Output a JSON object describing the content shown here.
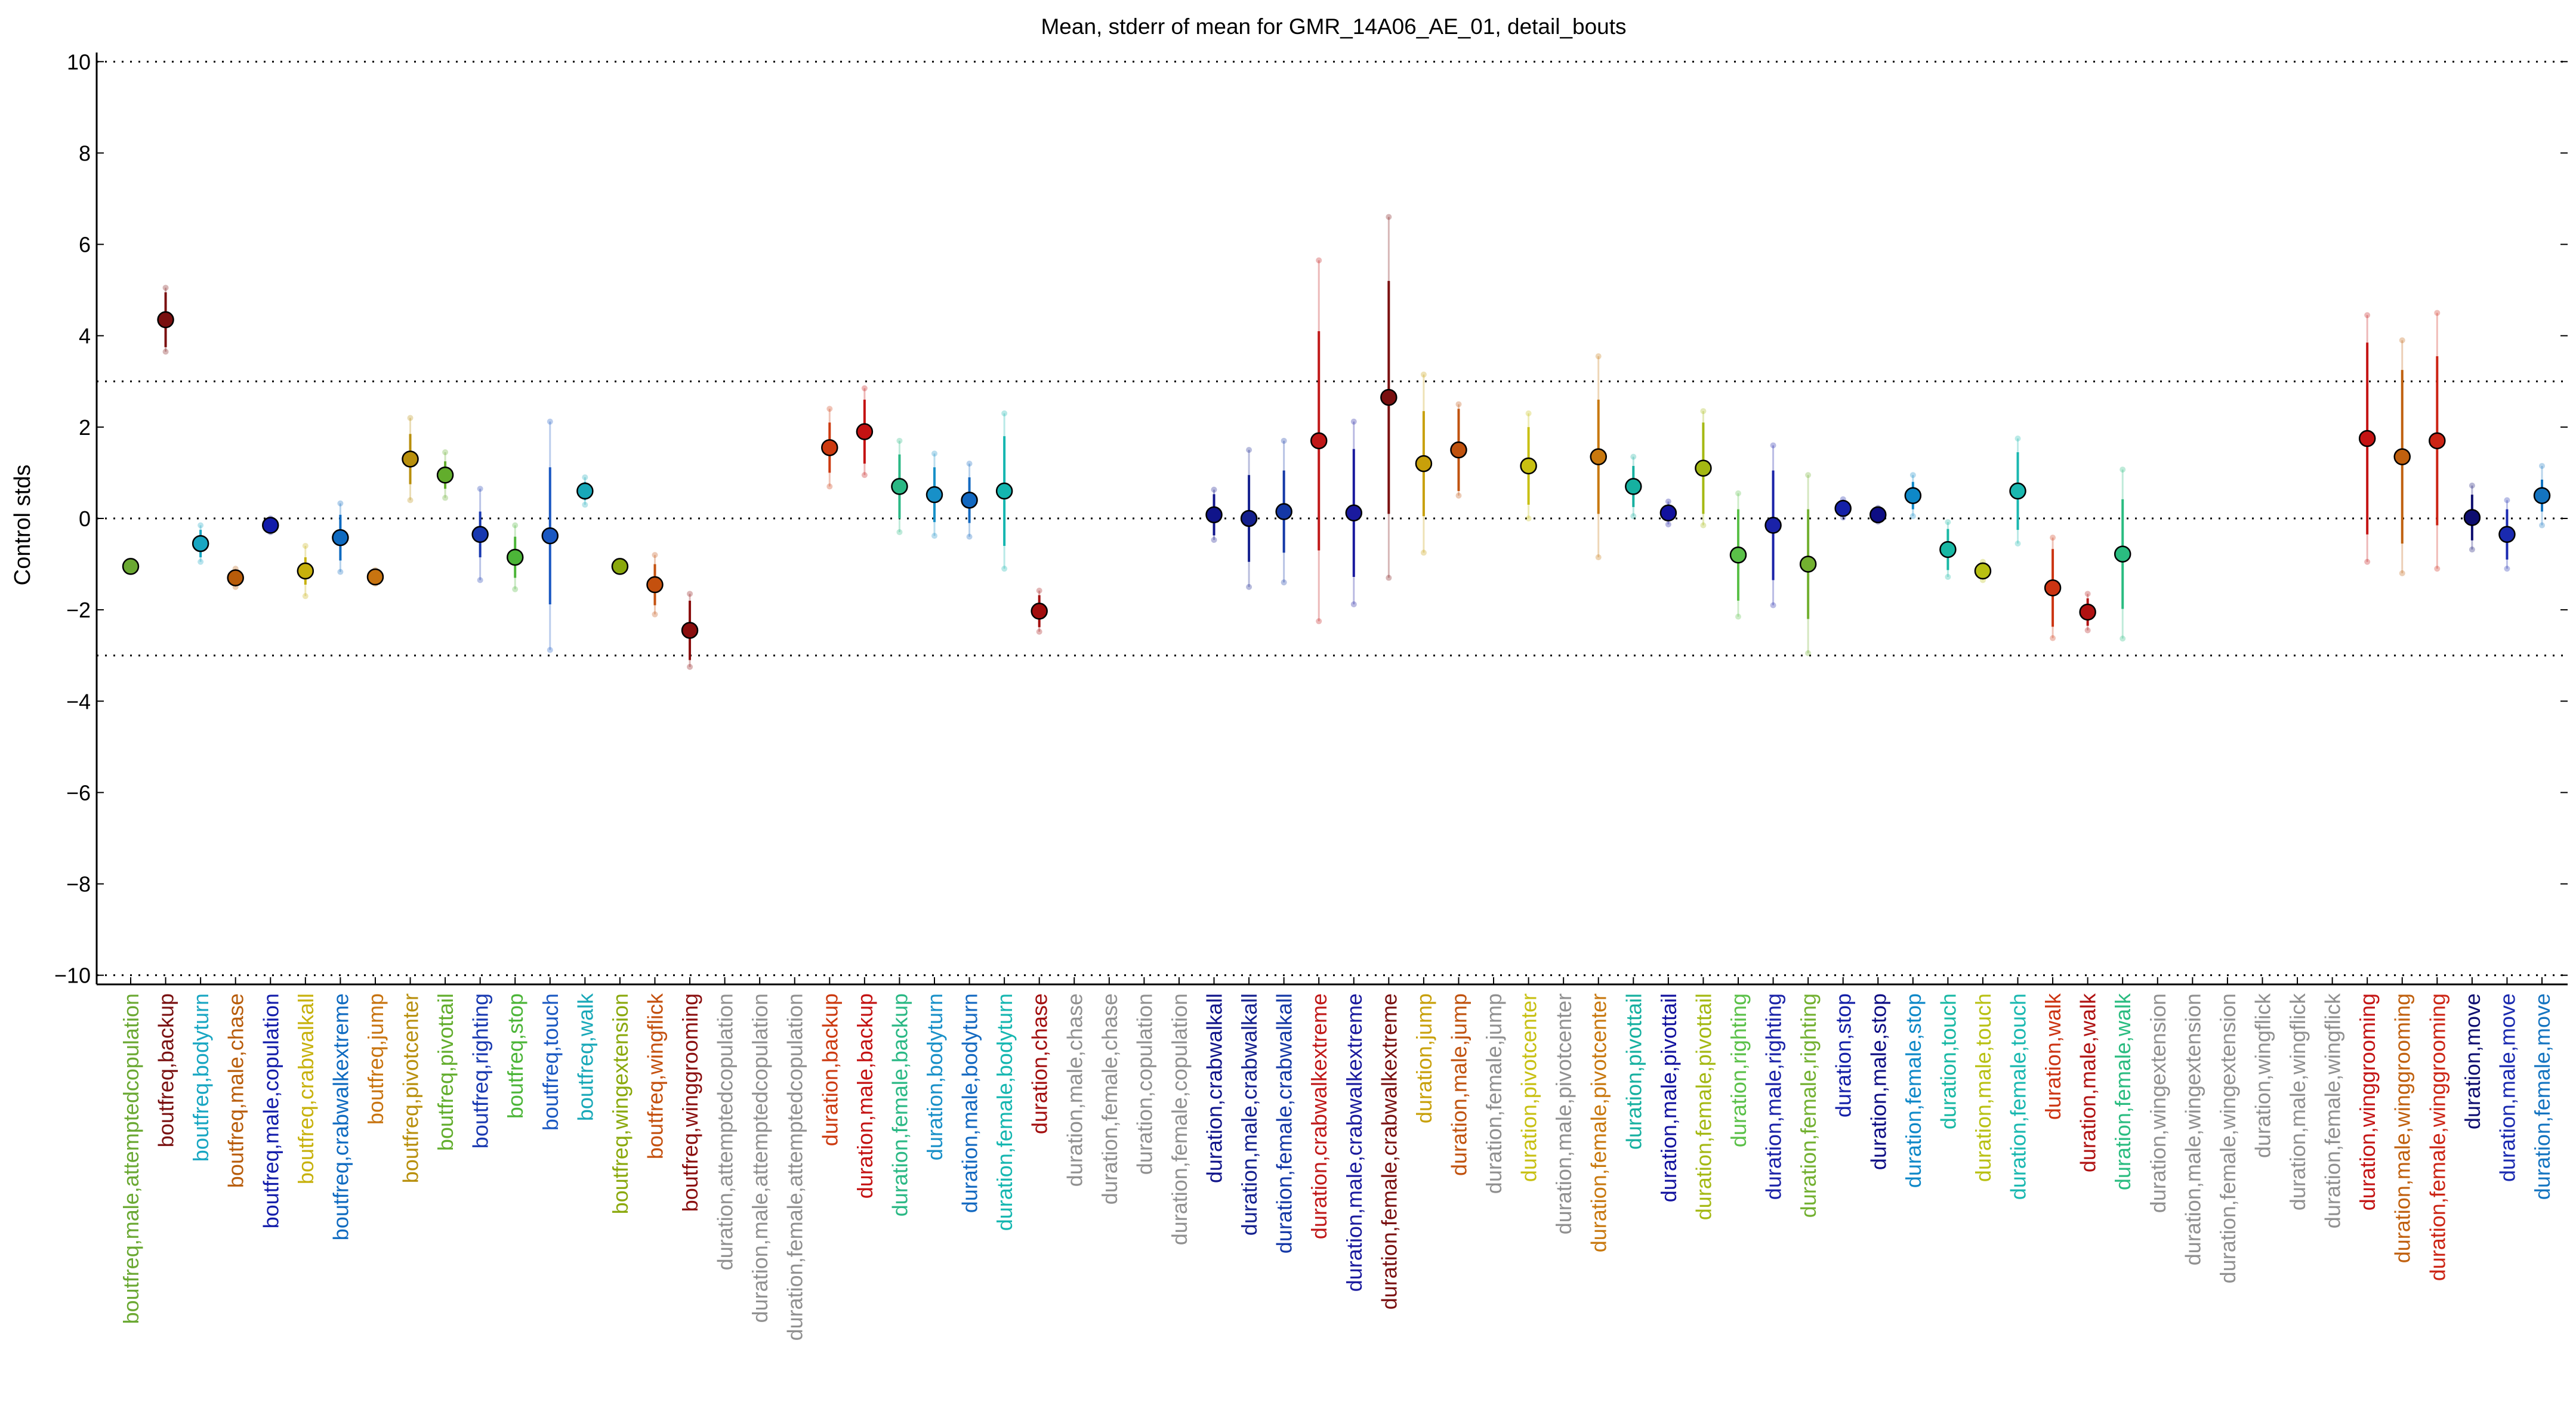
{
  "chart_data": {
    "type": "scatter",
    "title": "Mean, stderr of mean for GMR_14A06_AE_01, detail_bouts",
    "xlabel": "",
    "ylabel": "Control stds",
    "ylim": [
      -10.2,
      10.2
    ],
    "yticks": [
      -10,
      -8,
      -6,
      -4,
      -2,
      0,
      2,
      4,
      6,
      8,
      10
    ],
    "hlines": [
      10,
      3,
      0,
      -3,
      -10
    ],
    "grid": false,
    "legend": "none",
    "points": [
      {
        "label": "boutfreq,male,attemptedcopulation",
        "color": "#6aa832",
        "y": -1.05,
        "err": 0,
        "ext": 0
      },
      {
        "label": "boutfreq,backup",
        "color": "#7a1010",
        "y": 4.35,
        "err": 0.6,
        "ext": 0.7
      },
      {
        "label": "boutfreq,bodyturn",
        "color": "#18a6c2",
        "y": -0.55,
        "err": 0.3,
        "ext": 0.4
      },
      {
        "label": "boutfreq,male,chase",
        "color": "#b85c0a",
        "y": -1.3,
        "err": 0.12,
        "ext": 0.2
      },
      {
        "label": "boutfreq,male,copulation",
        "color": "#121caa",
        "y": -0.15,
        "err": 0.1,
        "ext": 0.15
      },
      {
        "label": "boutfreq,crabwalkall",
        "color": "#c7b10c",
        "y": -1.15,
        "err": 0.3,
        "ext": 0.55
      },
      {
        "label": "boutfreq,crabwalkextreme",
        "color": "#0e6ac0",
        "y": -0.42,
        "err": 0.5,
        "ext": 0.75
      },
      {
        "label": "boutfreq,jump",
        "color": "#c87410",
        "y": -1.28,
        "err": 0.1,
        "ext": 0.15
      },
      {
        "label": "boutfreq,pivotcenter",
        "color": "#b88f0c",
        "y": 1.3,
        "err": 0.55,
        "ext": 0.9
      },
      {
        "label": "boutfreq,pivottail",
        "color": "#62ad2c",
        "y": 0.95,
        "err": 0.3,
        "ext": 0.5
      },
      {
        "label": "boutfreq,righting",
        "color": "#1838b0",
        "y": -0.35,
        "err": 0.5,
        "ext": 1.0
      },
      {
        "label": "boutfreq,stop",
        "color": "#4cb538",
        "y": -0.85,
        "err": 0.45,
        "ext": 0.7
      },
      {
        "label": "boutfreq,touch",
        "color": "#1a58c2",
        "y": -0.38,
        "err": 1.5,
        "ext": 2.5
      },
      {
        "label": "boutfreq,walk",
        "color": "#18a8b8",
        "y": 0.6,
        "err": 0.2,
        "ext": 0.3
      },
      {
        "label": "boutfreq,wingextension",
        "color": "#8aa80c",
        "y": -1.05,
        "err": 0.05,
        "ext": 0.1
      },
      {
        "label": "boutfreq,wingflick",
        "color": "#c4500e",
        "y": -1.45,
        "err": 0.45,
        "ext": 0.65
      },
      {
        "label": "boutfreq,winggrooming",
        "color": "#8a0e0e",
        "y": -2.45,
        "err": 0.65,
        "ext": 0.8
      },
      {
        "label": "duration,attemptedcopulation",
        "color": "#909090",
        "y": null
      },
      {
        "label": "duration,male,attemptedcopulation",
        "color": "#909090",
        "y": null
      },
      {
        "label": "duration,female,attemptedcopulation",
        "color": "#909090",
        "y": null
      },
      {
        "label": "duration,backup",
        "color": "#cc3a10",
        "y": 1.55,
        "err": 0.55,
        "ext": 0.85
      },
      {
        "label": "duration,male,backup",
        "color": "#c41212",
        "y": 1.9,
        "err": 0.7,
        "ext": 0.95
      },
      {
        "label": "duration,female,backup",
        "color": "#2ab884",
        "y": 0.7,
        "err": 0.7,
        "ext": 1.0
      },
      {
        "label": "duration,bodyturn",
        "color": "#1890c8",
        "y": 0.52,
        "err": 0.6,
        "ext": 0.9
      },
      {
        "label": "duration,male,bodyturn",
        "color": "#1268c0",
        "y": 0.4,
        "err": 0.5,
        "ext": 0.8
      },
      {
        "label": "duration,female,bodyturn",
        "color": "#14b6b0",
        "y": 0.6,
        "err": 1.2,
        "ext": 1.7
      },
      {
        "label": "duration,chase",
        "color": "#a20e0e",
        "y": -2.03,
        "err": 0.35,
        "ext": 0.45
      },
      {
        "label": "duration,male,chase",
        "color": "#909090",
        "y": null
      },
      {
        "label": "duration,female,chase",
        "color": "#909090",
        "y": null
      },
      {
        "label": "duration,copulation",
        "color": "#909090",
        "y": null
      },
      {
        "label": "duration,female,copulation",
        "color": "#909090",
        "y": null
      },
      {
        "label": "duration,crabwalkall",
        "color": "#10148a",
        "y": 0.08,
        "err": 0.45,
        "ext": 0.55
      },
      {
        "label": "duration,male,crabwalkall",
        "color": "#14208e",
        "y": 0.0,
        "err": 0.95,
        "ext": 1.5
      },
      {
        "label": "duration,female,crabwalkall",
        "color": "#1438a6",
        "y": 0.15,
        "err": 0.9,
        "ext": 1.55
      },
      {
        "label": "duration,crabwalkextreme",
        "color": "#c01818",
        "y": 1.7,
        "err": 2.4,
        "ext": 3.95
      },
      {
        "label": "duration,male,crabwalkextreme",
        "color": "#1a1a9e",
        "y": 0.12,
        "err": 1.4,
        "ext": 2.0
      },
      {
        "label": "duration,female,crabwalkextreme",
        "color": "#7a1010",
        "y": 2.65,
        "err": 2.55,
        "ext": 3.95
      },
      {
        "label": "duration,jump",
        "color": "#c8a00a",
        "y": 1.2,
        "err": 1.15,
        "ext": 1.95
      },
      {
        "label": "duration,male,jump",
        "color": "#c0520e",
        "y": 1.5,
        "err": 0.9,
        "ext": 1.0
      },
      {
        "label": "duration,female,jump",
        "color": "#909090",
        "y": null
      },
      {
        "label": "duration,pivotcenter",
        "color": "#c8c012",
        "y": 1.15,
        "err": 0.85,
        "ext": 1.15
      },
      {
        "label": "duration,male,pivotcenter",
        "color": "#909090",
        "y": null
      },
      {
        "label": "duration,female,pivotcenter",
        "color": "#c8780e",
        "y": 1.35,
        "err": 1.25,
        "ext": 2.2
      },
      {
        "label": "duration,pivottail",
        "color": "#16b0a0",
        "y": 0.7,
        "err": 0.45,
        "ext": 0.65
      },
      {
        "label": "duration,male,pivottail",
        "color": "#12129e",
        "y": 0.12,
        "err": 0.15,
        "ext": 0.25
      },
      {
        "label": "duration,female,pivottail",
        "color": "#a4b812",
        "y": 1.1,
        "err": 1.0,
        "ext": 1.25
      },
      {
        "label": "duration,righting",
        "color": "#5ac048",
        "y": -0.8,
        "err": 1.0,
        "ext": 1.35
      },
      {
        "label": "duration,male,righting",
        "color": "#1a22a8",
        "y": -0.15,
        "err": 1.2,
        "ext": 1.75
      },
      {
        "label": "duration,female,righting",
        "color": "#72b030",
        "y": -1.0,
        "err": 1.2,
        "ext": 1.95
      },
      {
        "label": "duration,stop",
        "color": "#1420a8",
        "y": 0.22,
        "err": 0.12,
        "ext": 0.2
      },
      {
        "label": "duration,male,stop",
        "color": "#0e0e84",
        "y": 0.08,
        "err": 0.1,
        "ext": 0.15
      },
      {
        "label": "duration,female,stop",
        "color": "#0e88c8",
        "y": 0.5,
        "err": 0.3,
        "ext": 0.45
      },
      {
        "label": "duration,touch",
        "color": "#18b8a4",
        "y": -0.68,
        "err": 0.45,
        "ext": 0.6
      },
      {
        "label": "duration,male,touch",
        "color": "#b8c012",
        "y": -1.15,
        "err": 0.12,
        "ext": 0.2
      },
      {
        "label": "duration,female,touch",
        "color": "#1ab8b0",
        "y": 0.6,
        "err": 0.85,
        "ext": 1.15
      },
      {
        "label": "duration,walk",
        "color": "#cc3412",
        "y": -1.52,
        "err": 0.85,
        "ext": 1.1
      },
      {
        "label": "duration,male,walk",
        "color": "#b01212",
        "y": -2.05,
        "err": 0.3,
        "ext": 0.4
      },
      {
        "label": "duration,female,walk",
        "color": "#2abc80",
        "y": -0.78,
        "err": 1.2,
        "ext": 1.85
      },
      {
        "label": "duration,wingextension",
        "color": "#909090",
        "y": null
      },
      {
        "label": "duration,male,wingextension",
        "color": "#909090",
        "y": null
      },
      {
        "label": "duration,female,wingextension",
        "color": "#909090",
        "y": null
      },
      {
        "label": "duration,wingflick",
        "color": "#909090",
        "y": null
      },
      {
        "label": "duration,male,wingflick",
        "color": "#909090",
        "y": null
      },
      {
        "label": "duration,female,wingflick",
        "color": "#909090",
        "y": null
      },
      {
        "label": "duration,winggrooming",
        "color": "#c41414",
        "y": 1.75,
        "err": 2.1,
        "ext": 2.7
      },
      {
        "label": "duration,male,winggrooming",
        "color": "#c0600e",
        "y": 1.35,
        "err": 1.9,
        "ext": 2.55
      },
      {
        "label": "duration,female,winggrooming",
        "color": "#cc2414",
        "y": 1.7,
        "err": 1.85,
        "ext": 2.8
      },
      {
        "label": "duration,move",
        "color": "#0e0e70",
        "y": 0.02,
        "err": 0.5,
        "ext": 0.7
      },
      {
        "label": "duration,male,move",
        "color": "#1a2ab0",
        "y": -0.35,
        "err": 0.55,
        "ext": 0.75
      },
      {
        "label": "duration,female,move",
        "color": "#1474c0",
        "y": 0.5,
        "err": 0.35,
        "ext": 0.65
      }
    ]
  }
}
